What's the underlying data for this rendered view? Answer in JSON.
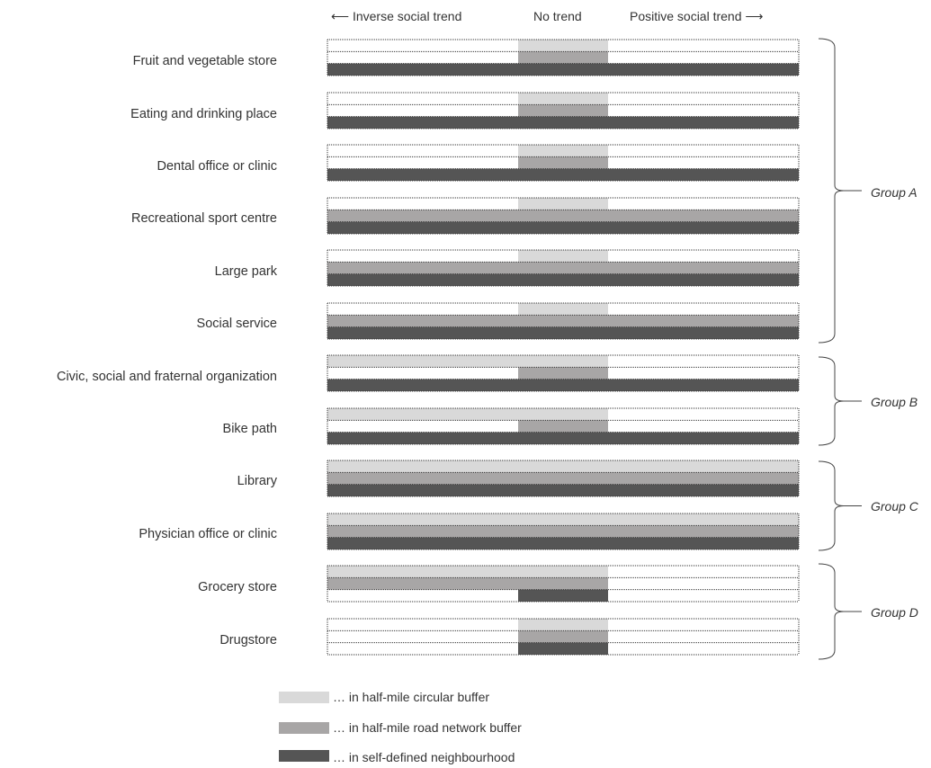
{
  "header": {
    "inverse": "⟵ Inverse social trend",
    "none": "No trend",
    "positive": "Positive social trend ⟶"
  },
  "columns": [
    "inverse",
    "none",
    "positive"
  ],
  "rows": [
    {
      "label": "Fruit and vegetable store",
      "circular": "none",
      "road": "none",
      "self": "both"
    },
    {
      "label": "Eating and drinking place",
      "circular": "none",
      "road": "none",
      "self": "both"
    },
    {
      "label": "Dental office or clinic",
      "circular": "none",
      "road": "none",
      "self": "both"
    },
    {
      "label": "Recreational sport centre",
      "circular": "none",
      "road": "both",
      "self": "both"
    },
    {
      "label": "Large park",
      "circular": "none",
      "road": "both",
      "self": "both"
    },
    {
      "label": "Social service",
      "circular": "none",
      "road": "both",
      "self": "both"
    },
    {
      "label": "Civic, social and fraternal organization",
      "circular": "left",
      "road": "none",
      "self": "both"
    },
    {
      "label": "Bike path",
      "circular": "left",
      "road": "none",
      "self": "both"
    },
    {
      "label": "Library",
      "circular": "both",
      "road": "both",
      "self": "both"
    },
    {
      "label": "Physician office or clinic",
      "circular": "both",
      "road": "both",
      "self": "both"
    },
    {
      "label": "Grocery store",
      "circular": "left",
      "road": "left",
      "self": "none"
    },
    {
      "label": "Drugstore",
      "circular": "none",
      "road": "none",
      "self": "none"
    }
  ],
  "groups": [
    {
      "label": "Group A"
    },
    {
      "label": "Group B"
    },
    {
      "label": "Group C"
    },
    {
      "label": "Group D"
    }
  ],
  "legend": [
    {
      "label": "… in half-mile circular buffer",
      "key": "circular"
    },
    {
      "label": "… in half-mile road network buffer",
      "key": "road"
    },
    {
      "label": "… in self-defined neighbourhood",
      "key": "self"
    }
  ],
  "colors": {
    "circular": "#d9d9d9",
    "road": "#a8a6a6",
    "self": "#555555",
    "dotted_border": "#333333"
  }
}
